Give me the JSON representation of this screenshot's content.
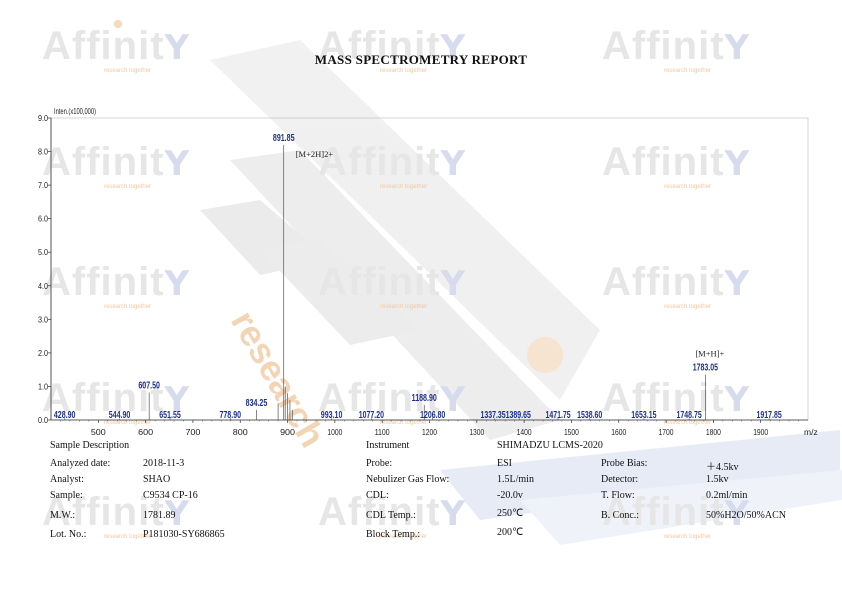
{
  "report_title": "MASS SPECTROMETRY REPORT",
  "watermark": {
    "text": "Affinit",
    "glyph": "Y",
    "tagline": "research together",
    "vertical_text": "research"
  },
  "chart_data": {
    "type": "line",
    "ylabel": "Inten.(x100,000)",
    "xlabel_unit": "m/z",
    "xlim": [
      400,
      2000
    ],
    "ylim": [
      0,
      9
    ],
    "x_ticks": [
      500,
      600,
      700,
      800,
      900,
      1000,
      1100,
      1200,
      1300,
      1400,
      1500,
      1600,
      1700,
      1800,
      1900
    ],
    "y_ticks": [
      "0.0",
      "1.0",
      "2.0",
      "3.0",
      "4.0",
      "5.0",
      "6.0",
      "7.0",
      "8.0",
      "9.0"
    ],
    "peaks": [
      {
        "mz": 428.9,
        "intensity": 0.05
      },
      {
        "mz": 544.9,
        "intensity": 0.04
      },
      {
        "mz": 607.5,
        "intensity": 0.82
      },
      {
        "mz": 651.55,
        "intensity": 0.1
      },
      {
        "mz": 778.9,
        "intensity": 0.06
      },
      {
        "mz": 834.25,
        "intensity": 0.3
      },
      {
        "mz": 880.0,
        "intensity": 0.5
      },
      {
        "mz": 891.85,
        "intensity": 8.2
      },
      {
        "mz": 895.0,
        "intensity": 1.0
      },
      {
        "mz": 900.0,
        "intensity": 0.8
      },
      {
        "mz": 905.0,
        "intensity": 0.6
      },
      {
        "mz": 910.0,
        "intensity": 0.3
      },
      {
        "mz": 993.1,
        "intensity": 0.05
      },
      {
        "mz": 1077.2,
        "intensity": 0.05
      },
      {
        "mz": 1188.9,
        "intensity": 0.45
      },
      {
        "mz": 1206.8,
        "intensity": 0.15
      },
      {
        "mz": 1337.35,
        "intensity": 0.05
      },
      {
        "mz": 1389.65,
        "intensity": 0.05
      },
      {
        "mz": 1471.75,
        "intensity": 0.05
      },
      {
        "mz": 1538.6,
        "intensity": 0.05
      },
      {
        "mz": 1653.15,
        "intensity": 0.05
      },
      {
        "mz": 1748.75,
        "intensity": 0.05
      },
      {
        "mz": 1783.05,
        "intensity": 1.35
      },
      {
        "mz": 1917.85,
        "intensity": 0.05
      }
    ],
    "peak_labels": [
      {
        "mz": 428.9,
        "text": "428.90",
        "level": "base"
      },
      {
        "mz": 544.9,
        "text": "544.90",
        "level": "base"
      },
      {
        "mz": 607.5,
        "text": "607.50",
        "level": 0.82
      },
      {
        "mz": 651.55,
        "text": "651.55",
        "level": "base"
      },
      {
        "mz": 778.9,
        "text": "778.90",
        "level": "base"
      },
      {
        "mz": 834.25,
        "text": "834.25",
        "level": 0.3
      },
      {
        "mz": 891.85,
        "text": "891.85",
        "level": 8.2
      },
      {
        "mz": 993.1,
        "text": "993.10",
        "level": "base"
      },
      {
        "mz": 1077.2,
        "text": "1077.20",
        "level": "base"
      },
      {
        "mz": 1188.9,
        "text": "1188.90",
        "level": 0.45
      },
      {
        "mz": 1206.8,
        "text": "1206.80",
        "level": "base"
      },
      {
        "mz": 1361.0,
        "text": "1337.351389.65",
        "level": "base"
      },
      {
        "mz": 1471.75,
        "text": "1471.75",
        "level": "base"
      },
      {
        "mz": 1538.6,
        "text": "1538.60",
        "level": "base"
      },
      {
        "mz": 1653.15,
        "text": "1653.15",
        "level": "base"
      },
      {
        "mz": 1748.75,
        "text": "1748.75",
        "level": "base"
      },
      {
        "mz": 1783.05,
        "text": "1783.05",
        "level": 1.35
      },
      {
        "mz": 1917.85,
        "text": "1917.85",
        "level": "base"
      }
    ],
    "annotations": [
      {
        "mz": 891.85,
        "intensity": 8.2,
        "text": "[M+2H]2+"
      },
      {
        "mz": 1783.05,
        "intensity": 1.35,
        "text": "[M+H]+"
      }
    ]
  },
  "sample": {
    "header": "Sample Description",
    "rows": [
      {
        "label": "Analyzed date:",
        "value": "2018-11-3"
      },
      {
        "label": "Analyst:",
        "value": "SHAO"
      },
      {
        "label": "Sample:",
        "value": "C9534 CP-16"
      },
      {
        "label": "M.W.:",
        "value": "1781.89"
      },
      {
        "label": "Lot. No.:",
        "value": "P181030-SY686865"
      }
    ]
  },
  "instrument": {
    "header": "Instrument",
    "model": "SHIMADZU LCMS-2020",
    "rows": [
      {
        "label": "Probe:",
        "value": "ESI"
      },
      {
        "label": "Nebulizer Gas Flow:",
        "value": "1.5L/min"
      },
      {
        "label": "CDL:",
        "value": "-20.0v"
      },
      {
        "label": "CDL Temp.:",
        "value": "250℃"
      },
      {
        "label": "Block Temp.:",
        "value": "200℃"
      }
    ],
    "right_rows": [
      {
        "label": "Probe Bias:",
        "value": "＋4.5kv"
      },
      {
        "label": "Detector:",
        "value": "1.5kv"
      },
      {
        "label": "T. Flow:",
        "value": "0.2ml/min"
      },
      {
        "label": "B. Conc.:",
        "value": "50%H2O/50%ACN"
      }
    ]
  },
  "colors": {
    "peak_label": "#1c2f8c",
    "axis": "#333333",
    "peak": "#555555"
  }
}
